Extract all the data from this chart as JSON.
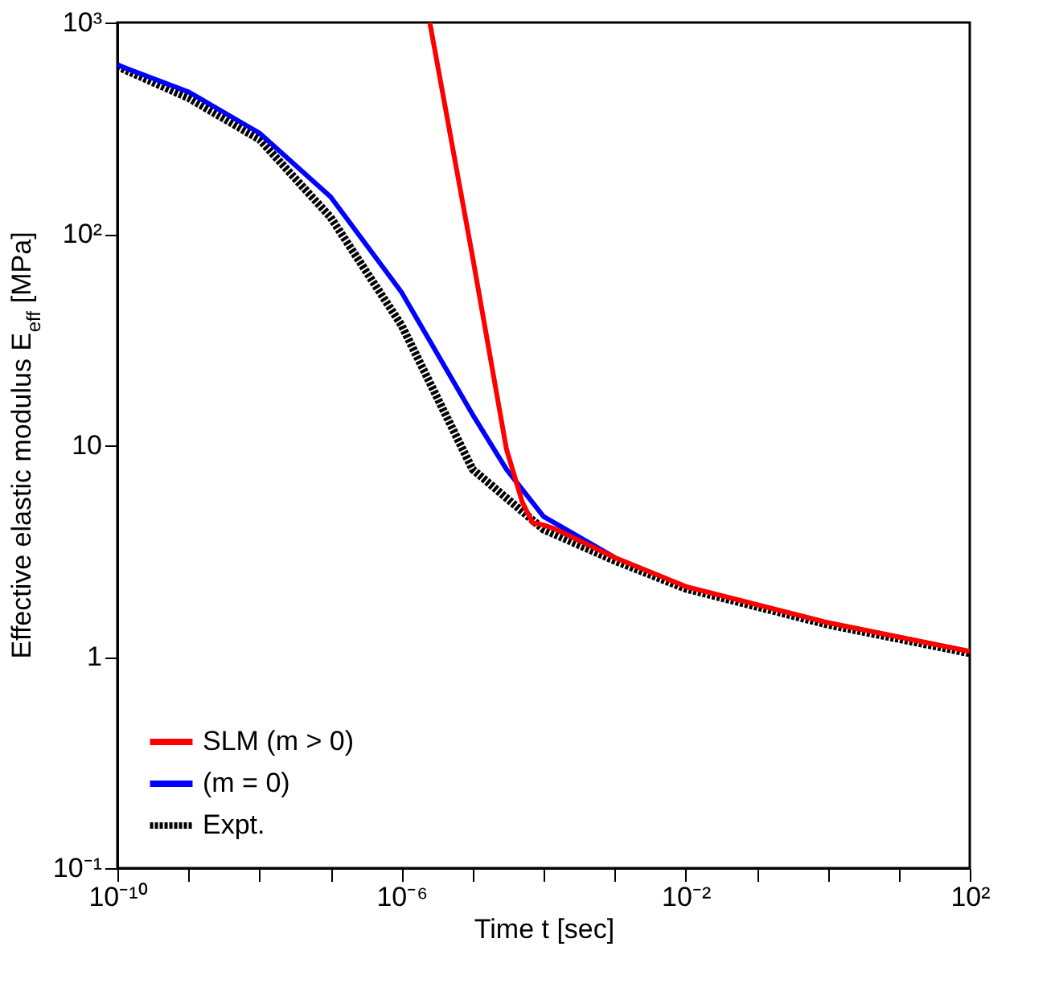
{
  "chart_data": {
    "type": "line",
    "xlabel": "Time t [sec]",
    "ylabel": "Effective elastic modulus E$_{eff}$ [MPa]",
    "log": "xy",
    "xlim": [
      1e-10,
      100
    ],
    "ylim": [
      0.1,
      1000
    ],
    "xticks": [
      {
        "value": 1e-10,
        "label": "10⁻¹⁰"
      },
      {
        "value": 1e-09,
        "label": null
      },
      {
        "value": 1e-08,
        "label": null
      },
      {
        "value": 1e-07,
        "label": null
      },
      {
        "value": 1e-06,
        "label": "10⁻⁶"
      },
      {
        "value": 1e-05,
        "label": null
      },
      {
        "value": 0.0001,
        "label": null
      },
      {
        "value": 0.001,
        "label": null
      },
      {
        "value": 0.01,
        "label": "10⁻²"
      },
      {
        "value": 0.1,
        "label": null
      },
      {
        "value": 1,
        "label": null
      },
      {
        "value": 10,
        "label": null
      },
      {
        "value": 100,
        "label": "10²"
      }
    ],
    "yticks": [
      {
        "value": 0.1,
        "label": "10⁻¹"
      },
      1,
      10,
      {
        "value": 100,
        "label": "10²"
      },
      {
        "value": 1000,
        "label": "10³"
      }
    ],
    "grid": false,
    "legend": "bottom left",
    "series": [
      {
        "name": "SLM (m > 0)",
        "color": "#ff0000",
        "line_style": "solid",
        "x": [
          2.5e-06,
          1e-05,
          3e-05,
          5e-05,
          7e-05,
          0.0001,
          0.00015,
          0.001,
          0.01,
          1,
          100
        ],
        "values": [
          1000,
          78,
          9.6,
          5.4,
          4.3,
          4.2,
          4.0,
          2.95,
          2.15,
          1.45,
          1.06
        ]
      },
      {
        "name": "(m = 0)",
        "color": "#0000ff",
        "line_style": "solid",
        "x": [
          1e-10,
          1e-09,
          1e-08,
          1e-07,
          1e-06,
          1e-05,
          3e-05,
          0.0001,
          0.001
        ],
        "values": [
          630,
          470,
          300,
          150,
          53,
          14,
          7.7,
          4.6,
          2.95
        ]
      },
      {
        "name": "Expt.",
        "color": "#000000",
        "line_style": "dotted",
        "x": [
          1e-10,
          1e-09,
          1e-08,
          1e-07,
          1e-06,
          1e-05,
          0.0001,
          0.001,
          0.01,
          1,
          100
        ],
        "values": [
          620,
          440,
          280,
          120,
          37,
          7.7,
          4.0,
          2.85,
          2.1,
          1.42,
          1.04
        ]
      }
    ]
  }
}
